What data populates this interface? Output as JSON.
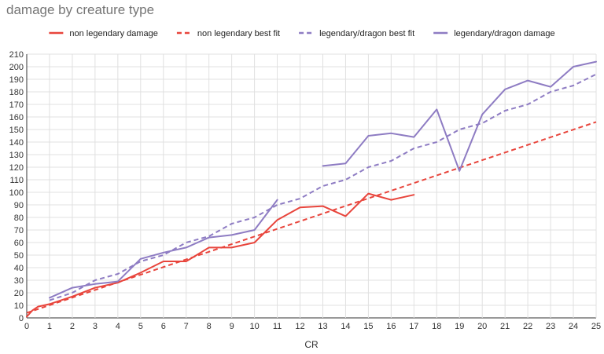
{
  "chart_data": {
    "type": "line",
    "title": "damage by creature type",
    "xlabel": "CR",
    "ylabel": "",
    "xlim": [
      0,
      25
    ],
    "ylim": [
      0,
      210
    ],
    "x_ticks": [
      0,
      1,
      2,
      3,
      4,
      5,
      6,
      7,
      8,
      9,
      10,
      11,
      12,
      13,
      14,
      15,
      16,
      17,
      18,
      19,
      20,
      21,
      22,
      23,
      24,
      25
    ],
    "y_ticks": [
      0,
      10,
      20,
      30,
      40,
      50,
      60,
      70,
      80,
      90,
      100,
      110,
      120,
      130,
      140,
      150,
      160,
      170,
      180,
      190,
      200,
      210
    ],
    "grid": true,
    "legend_position": "top",
    "series": [
      {
        "name": "non legendary damage",
        "color": "#e8453c",
        "style": "solid",
        "x": [
          0,
          0.25,
          0.5,
          1,
          2,
          3,
          4,
          5,
          6,
          7,
          8,
          9,
          10,
          11,
          12,
          13,
          14,
          15,
          16,
          17
        ],
        "y": [
          1,
          6,
          9,
          11,
          17,
          24,
          28,
          36,
          45,
          45,
          56,
          56,
          60,
          78,
          88,
          89,
          81,
          99,
          94,
          98
        ]
      },
      {
        "name": "non legendary best fit",
        "color": "#e8453c",
        "style": "dashed",
        "x": [
          0,
          25
        ],
        "y": [
          4,
          156
        ]
      },
      {
        "name": "legendary/dragon best fit",
        "color": "#8e7cc3",
        "style": "dashed",
        "x": [
          1,
          2,
          3,
          4,
          5,
          6,
          7,
          8,
          9,
          10,
          11,
          12,
          13,
          14,
          15,
          16,
          17,
          18,
          19,
          20,
          21,
          22,
          23,
          24,
          25
        ],
        "y": [
          14,
          20,
          30,
          35,
          45,
          50,
          60,
          65,
          75,
          80,
          90,
          95,
          105,
          110,
          120,
          125,
          135,
          140,
          150,
          155,
          165,
          170,
          180,
          185,
          194
        ]
      },
      {
        "name": "legendary/dragon damage",
        "color": "#8e7cc3",
        "style": "solid",
        "segments": [
          {
            "x": [
              1,
              2,
              3,
              4,
              5,
              6,
              7,
              8,
              9,
              10,
              11
            ],
            "y": [
              16,
              24,
              27,
              29,
              47,
              52,
              56,
              64,
              66,
              70,
              94
            ]
          },
          {
            "x": [
              13,
              14,
              15,
              16,
              17,
              18,
              19,
              20,
              21,
              22,
              23,
              24,
              25
            ],
            "y": [
              121,
              123,
              145,
              147,
              144,
              166,
              117,
              162,
              182,
              189,
              184,
              200,
              204
            ]
          }
        ]
      }
    ]
  }
}
